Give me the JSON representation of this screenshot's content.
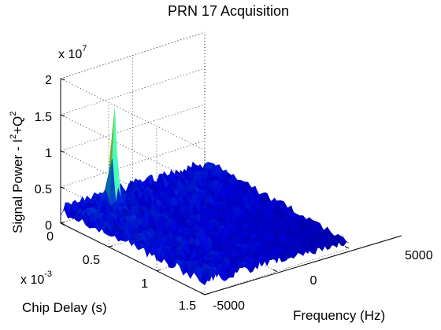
{
  "chart_data": {
    "type": "surface",
    "title": "PRN 17 Acquisition",
    "xlabel": "Frequency (Hz)",
    "ylabel": "Chip Delay (s)",
    "zlabel": "Signal Power - I^2+Q^2",
    "zlabel_parts": [
      "Signal Power - I",
      "2",
      "+Q",
      "2"
    ],
    "x_ticks": [
      "-5000",
      "0",
      "5000"
    ],
    "y_ticks": [
      "0",
      "0.5",
      "1",
      "1.5"
    ],
    "z_ticks": [
      "0",
      "0.5",
      "1",
      "1.5",
      "2"
    ],
    "x_range": [
      -5000,
      5000
    ],
    "y_range": [
      0,
      0.0015
    ],
    "z_range": [
      0,
      20000000
    ],
    "z_multiplier": {
      "base": "x 10",
      "exp": "7"
    },
    "y_multiplier": {
      "base": "x 10",
      "exp": "-3"
    },
    "peak": {
      "frequency": -2000,
      "chip_delay": 0.0001,
      "power": 15500000
    },
    "noise_floor": 2000000,
    "grid": true,
    "colormap": "jet"
  }
}
